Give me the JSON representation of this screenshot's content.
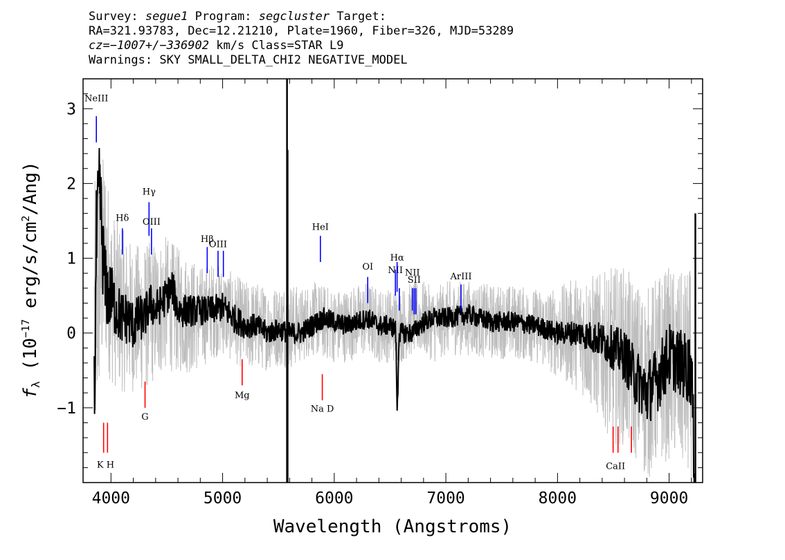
{
  "header": {
    "line1": {
      "survey_label": "Survey:",
      "survey": "segue1",
      "program_label": "Program:",
      "program": "segcluster",
      "target_label": "Target:"
    },
    "line2": "RA=321.93783, Dec=12.21210, Plate=1960, Fiber=326, MJD=53289",
    "line3": {
      "cz": "cz=−1007+/−336902",
      "rest": "km/s Class=STAR L9"
    },
    "line4": "Warnings: SKY SMALL_DELTA_CHI2 NEGATIVE_MODEL"
  },
  "chart_data": {
    "type": "line",
    "xlabel": "Wavelength (Angstroms)",
    "ylabel": "f_λ (10^-17 erg/s/cm^2/Ang)",
    "xlim": [
      3750,
      9300
    ],
    "ylim": [
      -2.0,
      3.4
    ],
    "xticks": [
      4000,
      5000,
      6000,
      7000,
      8000,
      9000
    ],
    "yticks": [
      -1,
      0,
      1,
      2,
      3
    ],
    "series": [
      {
        "color": "#bebebe",
        "x": [
          3850,
          3900,
          3950,
          4000,
          4100,
          4200,
          4300,
          4400,
          4500,
          4600,
          4700,
          4800,
          4900,
          5000,
          5100,
          5200,
          5300,
          5400,
          5500,
          5600,
          5700,
          5800,
          5900,
          6000,
          6100,
          6200,
          6300,
          6400,
          6500,
          6600,
          6700,
          6800,
          6900,
          7000,
          7200,
          7400,
          7600,
          7800,
          8000,
          8200,
          8400,
          8500,
          8600,
          8700,
          8800,
          8900,
          9000,
          9100,
          9200
        ],
        "y": [
          0.0,
          0.8,
          1.0,
          0.5,
          0.3,
          0.2,
          0.2,
          0.3,
          0.4,
          0.3,
          0.25,
          0.2,
          0.3,
          0.3,
          0.2,
          0.1,
          0.1,
          0.05,
          0.1,
          0.1,
          0.1,
          0.2,
          0.15,
          0.1,
          0.1,
          0.15,
          0.2,
          0.1,
          0.1,
          0.1,
          0.2,
          0.2,
          0.1,
          0.2,
          0.2,
          0.15,
          0.15,
          0.1,
          0.0,
          0.0,
          -0.2,
          -0.3,
          -0.3,
          -0.5,
          -0.7,
          -0.5,
          -0.4,
          -0.5,
          -0.6
        ],
        "noise": [
          2.0,
          1.6,
          1.4,
          1.2,
          1.1,
          1.0,
          1.0,
          0.95,
          0.9,
          0.85,
          0.8,
          0.7,
          0.65,
          0.6,
          0.6,
          0.6,
          0.6,
          0.55,
          0.55,
          0.6,
          0.5,
          0.5,
          0.5,
          0.5,
          0.5,
          0.5,
          0.5,
          0.5,
          0.5,
          0.5,
          0.5,
          0.5,
          0.5,
          0.5,
          0.5,
          0.5,
          0.5,
          0.5,
          0.6,
          0.8,
          1.0,
          1.2,
          1.2,
          1.2,
          1.3,
          1.3,
          1.3,
          1.3,
          1.5
        ]
      },
      {
        "color": "#000000",
        "x": [
          3850,
          3870,
          3900,
          3930,
          3950,
          3980,
          4000,
          4050,
          4100,
          4150,
          4200,
          4250,
          4300,
          4350,
          4400,
          4450,
          4500,
          4550,
          4600,
          4700,
          4800,
          4900,
          5000,
          5100,
          5200,
          5300,
          5400,
          5500,
          5600,
          5700,
          5800,
          5900,
          6000,
          6100,
          6200,
          6300,
          6400,
          6500,
          6550,
          6565,
          6580,
          6600,
          6700,
          6800,
          6900,
          7000,
          7200,
          7400,
          7600,
          7800,
          8000,
          8200,
          8400,
          8500,
          8600,
          8700,
          8800,
          8900,
          9000,
          9100,
          9200,
          9230
        ],
        "y": [
          -1.0,
          1.2,
          1.9,
          1.0,
          0.6,
          0.5,
          0.5,
          0.3,
          0.2,
          0.2,
          0.1,
          0.2,
          0.2,
          0.4,
          0.3,
          0.4,
          0.5,
          0.6,
          0.3,
          0.3,
          0.3,
          0.3,
          0.35,
          0.2,
          0.1,
          0.1,
          0.0,
          0.05,
          0.0,
          0.0,
          0.1,
          0.2,
          0.15,
          0.1,
          0.15,
          0.2,
          0.1,
          0.1,
          0.05,
          -1.1,
          0.0,
          0.0,
          0.0,
          0.15,
          0.2,
          0.2,
          0.25,
          0.15,
          0.15,
          0.1,
          0.0,
          0.0,
          -0.1,
          -0.2,
          -0.3,
          -0.6,
          -0.8,
          -0.6,
          -0.3,
          -0.4,
          -0.5,
          -2.0
        ],
        "jitter": [
          0.9,
          0.8,
          0.7,
          0.6,
          0.55,
          0.5,
          0.45,
          0.4,
          0.38,
          0.36,
          0.34,
          0.32,
          0.3,
          0.28,
          0.28,
          0.26,
          0.26,
          0.25,
          0.24,
          0.22,
          0.2,
          0.2,
          0.2,
          0.2,
          0.18,
          0.16,
          0.16,
          0.15,
          0.15,
          0.15,
          0.15,
          0.15,
          0.14,
          0.14,
          0.14,
          0.14,
          0.14,
          0.14,
          0.14,
          0.14,
          0.14,
          0.14,
          0.14,
          0.14,
          0.14,
          0.14,
          0.14,
          0.14,
          0.14,
          0.14,
          0.15,
          0.18,
          0.25,
          0.3,
          0.35,
          0.4,
          0.45,
          0.45,
          0.45,
          0.45,
          0.5,
          0.5
        ]
      }
    ],
    "spikes": [
      {
        "x": 5577,
        "y_top": 3.4,
        "y_bottom": -2.0
      },
      {
        "x": 5582,
        "y_top": 2.45,
        "y_bottom": -2.0
      },
      {
        "x": 9235,
        "y_top": 1.6,
        "y_bottom": -2.0
      }
    ],
    "emission_lines": [
      {
        "label": "NeIII",
        "x": 3869,
        "y_bottom": 2.55,
        "y_top": 2.9,
        "label_y": 3.1
      },
      {
        "label": "Hδ",
        "x": 4102,
        "y_bottom": 1.05,
        "y_top": 1.4,
        "label_y": 1.5
      },
      {
        "label": "Hγ",
        "x": 4341,
        "y_bottom": 1.3,
        "y_top": 1.75,
        "label_y": 1.85
      },
      {
        "label": "OIII",
        "x": 4363,
        "y_bottom": 1.05,
        "y_top": 1.4,
        "label_y": 1.45
      },
      {
        "label": "Hβ",
        "x": 4862,
        "y_bottom": 0.8,
        "y_top": 1.15,
        "label_y": 1.22
      },
      {
        "label": "OIII",
        "x": 4959,
        "y_bottom": 0.75,
        "y_top": 1.1,
        "label_y": 1.15
      },
      {
        "label": "",
        "x": 5007,
        "y_bottom": 0.75,
        "y_top": 1.1,
        "label_y": 1.15
      },
      {
        "label": "HeI",
        "x": 5876,
        "y_bottom": 0.95,
        "y_top": 1.3,
        "label_y": 1.38
      },
      {
        "label": "OI",
        "x": 6300,
        "y_bottom": 0.4,
        "y_top": 0.75,
        "label_y": 0.85
      },
      {
        "label": "NII",
        "x": 6548,
        "y_bottom": 0.5,
        "y_top": 0.85,
        "label_y": 0.8
      },
      {
        "label": "Hα",
        "x": 6563,
        "y_bottom": 0.55,
        "y_top": 0.95,
        "label_y": 0.97
      },
      {
        "label": "",
        "x": 6583,
        "y_bottom": 0.3,
        "y_top": 0.6,
        "label_y": 0.7
      },
      {
        "label": "NII",
        "x": 6700,
        "y_bottom": 0.3,
        "y_top": 0.6,
        "label_y": 0.77
      },
      {
        "label": "SII",
        "x": 6716,
        "y_bottom": 0.25,
        "y_top": 0.6,
        "label_y": 0.67
      },
      {
        "label": "",
        "x": 6731,
        "y_bottom": 0.25,
        "y_top": 0.6,
        "label_y": 0.67
      },
      {
        "label": "ArIII",
        "x": 7136,
        "y_bottom": 0.3,
        "y_top": 0.65,
        "label_y": 0.72
      }
    ],
    "absorption_lines": [
      {
        "label": "K H",
        "x": 3934,
        "x2": 3969,
        "y_top": -1.2,
        "y_bottom": -1.6,
        "label_y": -1.8
      },
      {
        "label": "G",
        "x": 4305,
        "y_top": -0.65,
        "y_bottom": -1.0,
        "label_y": -1.16
      },
      {
        "label": "Mg",
        "x": 5175,
        "y_top": -0.35,
        "y_bottom": -0.7,
        "label_y": -0.87
      },
      {
        "label": "Na D",
        "x": 5893,
        "y_top": -0.55,
        "y_bottom": -0.9,
        "label_y": -1.05
      },
      {
        "label": "CaII",
        "x": 8498,
        "x2": 8542,
        "y_top": -1.25,
        "y_bottom": -1.6,
        "label_y": -1.82
      },
      {
        "label": "",
        "x": 8662,
        "y_top": -1.25,
        "y_bottom": -1.6,
        "label_y": -1.82
      }
    ],
    "colors": {
      "error": "#bebebe",
      "flux": "#000000",
      "emission": "#0000ff",
      "absorption": "#ff0000"
    }
  }
}
